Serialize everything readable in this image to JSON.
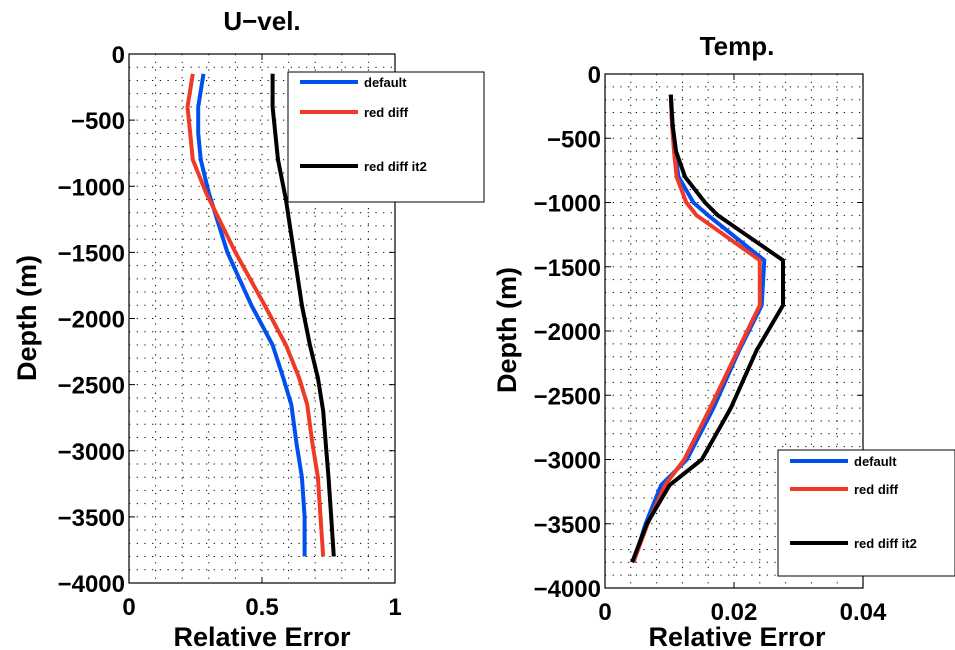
{
  "chart_data": [
    {
      "type": "line",
      "title": "U−vel.",
      "xlabel": "Relative Error",
      "ylabel": "Depth (m)",
      "xlim": [
        0,
        1
      ],
      "ylim": [
        -4000,
        0
      ],
      "xticks": [
        0,
        0.5,
        1
      ],
      "xtick_labels": [
        "0",
        "0.5",
        "1"
      ],
      "yticks": [
        0,
        -500,
        -1000,
        -1500,
        -2000,
        -2500,
        -3000,
        -3500,
        -4000
      ],
      "ytick_labels": [
        "0",
        "−500",
        "−1000",
        "−1500",
        "−2000",
        "−2500",
        "−3000",
        "−3500",
        "−4000"
      ],
      "grid": true,
      "legend_position": "top-right",
      "series": [
        {
          "name": "default",
          "color": "#0050f0",
          "x": [
            0.28,
            0.26,
            0.26,
            0.27,
            0.3,
            0.37,
            0.46,
            0.54,
            0.58,
            0.61,
            0.63,
            0.65,
            0.66,
            0.66
          ],
          "y": [
            -150,
            -400,
            -600,
            -800,
            -1050,
            -1500,
            -1900,
            -2200,
            -2450,
            -2650,
            -2950,
            -3200,
            -3500,
            -3800
          ]
        },
        {
          "name": "red diff",
          "color": "#f03a28",
          "x": [
            0.24,
            0.22,
            0.23,
            0.24,
            0.29,
            0.4,
            0.51,
            0.59,
            0.64,
            0.67,
            0.69,
            0.71,
            0.72,
            0.73
          ],
          "y": [
            -150,
            -400,
            -600,
            -800,
            -1050,
            -1500,
            -1900,
            -2200,
            -2450,
            -2650,
            -2950,
            -3200,
            -3500,
            -3800
          ]
        },
        {
          "name": "red diff it2",
          "color": "#000000",
          "x": [
            0.54,
            0.54,
            0.55,
            0.56,
            0.59,
            0.62,
            0.65,
            0.68,
            0.71,
            0.73,
            0.74,
            0.75,
            0.76,
            0.77
          ],
          "y": [
            -150,
            -400,
            -600,
            -800,
            -1100,
            -1500,
            -1900,
            -2200,
            -2450,
            -2700,
            -2950,
            -3200,
            -3500,
            -3800
          ]
        }
      ]
    },
    {
      "type": "line",
      "title": "Temp.",
      "xlabel": "Relative Error",
      "ylabel": "Depth (m)",
      "xlim": [
        0,
        0.04
      ],
      "ylim": [
        -4000,
        0
      ],
      "xticks": [
        0,
        0.02,
        0.04
      ],
      "xtick_labels": [
        "0",
        "0.02",
        "0.04"
      ],
      "yticks": [
        0,
        -500,
        -1000,
        -1500,
        -2000,
        -2500,
        -3000,
        -3500,
        -4000
      ],
      "ytick_labels": [
        "0",
        "−500",
        "−1000",
        "−1500",
        "−2000",
        "−2500",
        "−3000",
        "−3500",
        "−4000"
      ],
      "grid": true,
      "legend_position": "bottom-right",
      "series": [
        {
          "name": "default",
          "color": "#0050f0",
          "x": [
            0.0102,
            0.0104,
            0.0108,
            0.0114,
            0.0137,
            0.016,
            0.0247,
            0.0243,
            0.0208,
            0.0168,
            0.0127,
            0.0087,
            0.0063,
            0.0044
          ],
          "y": [
            -160,
            -400,
            -600,
            -800,
            -1000,
            -1100,
            -1450,
            -1800,
            -2150,
            -2600,
            -3000,
            -3200,
            -3500,
            -3800
          ]
        },
        {
          "name": "red diff",
          "color": "#f03a28",
          "x": [
            0.0102,
            0.0104,
            0.0107,
            0.0111,
            0.0126,
            0.0142,
            0.024,
            0.024,
            0.0206,
            0.0163,
            0.0123,
            0.0093,
            0.0066,
            0.0044
          ],
          "y": [
            -160,
            -400,
            -600,
            -800,
            -1000,
            -1100,
            -1450,
            -1800,
            -2150,
            -2600,
            -3000,
            -3200,
            -3500,
            -3800
          ]
        },
        {
          "name": "red diff it2",
          "color": "#000000",
          "x": [
            0.0102,
            0.0105,
            0.011,
            0.0124,
            0.0155,
            0.0175,
            0.0276,
            0.0276,
            0.0235,
            0.0195,
            0.015,
            0.01,
            0.0065,
            0.0042
          ],
          "y": [
            -160,
            -400,
            -600,
            -800,
            -1000,
            -1100,
            -1450,
            -1800,
            -2150,
            -2600,
            -3000,
            -3200,
            -3500,
            -3800
          ]
        }
      ]
    }
  ]
}
